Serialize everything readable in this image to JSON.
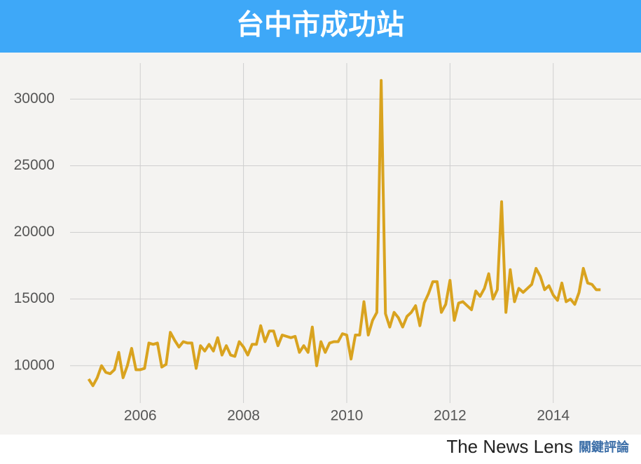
{
  "chart_data": {
    "type": "line",
    "title": "台中市成功站",
    "x": [
      2005,
      2005.083,
      2005.167,
      2005.25,
      2005.333,
      2005.417,
      2005.5,
      2005.583,
      2005.667,
      2005.75,
      2005.833,
      2005.917,
      2006,
      2006.083,
      2006.167,
      2006.25,
      2006.333,
      2006.417,
      2006.5,
      2006.583,
      2006.667,
      2006.75,
      2006.833,
      2006.917,
      2007,
      2007.083,
      2007.167,
      2007.25,
      2007.333,
      2007.417,
      2007.5,
      2007.583,
      2007.667,
      2007.75,
      2007.833,
      2007.917,
      2008,
      2008.083,
      2008.167,
      2008.25,
      2008.333,
      2008.417,
      2008.5,
      2008.583,
      2008.667,
      2008.75,
      2008.833,
      2008.917,
      2009,
      2009.083,
      2009.167,
      2009.25,
      2009.333,
      2009.417,
      2009.5,
      2009.583,
      2009.667,
      2009.75,
      2009.833,
      2009.917,
      2010,
      2010.083,
      2010.167,
      2010.25,
      2010.333,
      2010.417,
      2010.5,
      2010.583,
      2010.667,
      2010.75,
      2010.833,
      2010.917,
      2011,
      2011.083,
      2011.167,
      2011.25,
      2011.333,
      2011.417,
      2011.5,
      2011.583,
      2011.667,
      2011.75,
      2011.833,
      2011.917,
      2012,
      2012.083,
      2012.167,
      2012.25,
      2012.333,
      2012.417,
      2012.5,
      2012.583,
      2012.667,
      2012.75,
      2012.833,
      2012.917,
      2013,
      2013.083,
      2013.167,
      2013.25,
      2013.333,
      2013.417,
      2013.5,
      2013.583,
      2013.667,
      2013.75,
      2013.833,
      2013.917,
      2014,
      2014.083,
      2014.167,
      2014.25,
      2014.333,
      2014.417,
      2014.5,
      2014.583,
      2014.667,
      2014.75,
      2014.833,
      2014.917
    ],
    "values": [
      9000,
      8500,
      9100,
      10000,
      9500,
      9400,
      9700,
      11000,
      9100,
      10000,
      11300,
      9700,
      9700,
      9800,
      11700,
      11600,
      11700,
      9900,
      10100,
      12500,
      11900,
      11400,
      11800,
      11700,
      11700,
      9800,
      11500,
      11100,
      11600,
      11100,
      12100,
      10800,
      11500,
      10800,
      10700,
      11800,
      11400,
      10800,
      11600,
      11600,
      13000,
      11800,
      12600,
      12600,
      11500,
      12300,
      12200,
      12100,
      12200,
      11000,
      11500,
      11000,
      12900,
      10000,
      11800,
      11000,
      11700,
      11800,
      11800,
      12400,
      12300,
      10500,
      12300,
      12300,
      14800,
      12300,
      13400,
      14000,
      31400,
      13900,
      12900,
      14000,
      13600,
      12900,
      13700,
      14000,
      14500,
      13000,
      14700,
      15400,
      16300,
      16300,
      14000,
      14600,
      16400,
      13400,
      14700,
      14800,
      14500,
      14200,
      15600,
      15200,
      15800,
      16900,
      15000,
      15700,
      22300,
      14000,
      17200,
      14800,
      15800,
      15500,
      15800,
      16100,
      17300,
      16700,
      15700,
      16000,
      15300,
      14900,
      16200,
      14800,
      15000,
      14600,
      15500,
      17300,
      16200,
      16100,
      15700,
      15700
    ],
    "color": "#d9a31f",
    "xlim": [
      2004.64,
      2015.7
    ],
    "xticks": [
      2006,
      2008,
      2010,
      2012,
      2014
    ],
    "ylim": [
      7200,
      32700
    ],
    "yticks": [
      10000,
      15000,
      20000,
      25000,
      30000
    ],
    "grid": true
  },
  "brand": {
    "name": "The News Lens",
    "name_zh": "關鍵評論"
  }
}
